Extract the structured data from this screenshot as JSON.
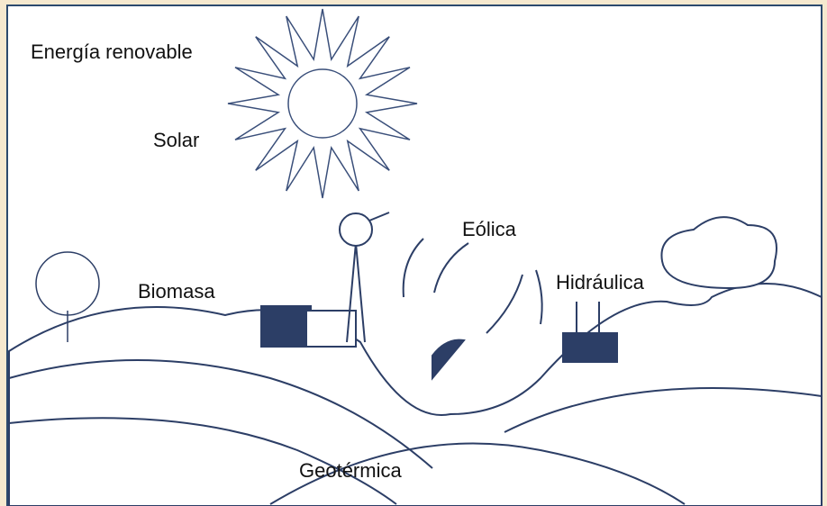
{
  "title": "Energía renovable",
  "labels": {
    "solar": "Solar",
    "eolica": "Eólica",
    "biomasa": "Biomasa",
    "hidraulica": "Hidráulica",
    "geotermica": "Geotérmica"
  }
}
